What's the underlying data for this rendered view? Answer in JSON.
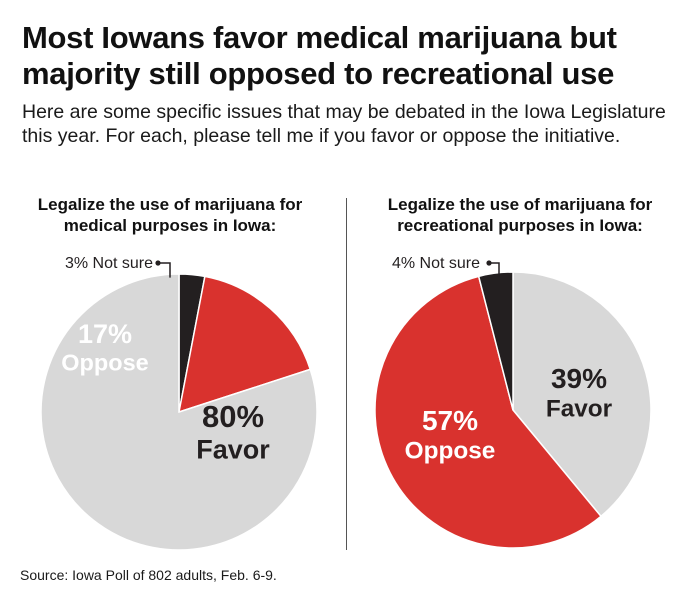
{
  "header": {
    "title": "Most Iowans favor medical marijuana but majority still opposed to recreational use",
    "subtitle": "Here are some specific issues that may be debated in the Iowa Legislature this year. For each, please tell me if you favor or oppose the initiative."
  },
  "footer": {
    "source": "Source: Iowa Poll of 802 adults, Feb. 6-9."
  },
  "colors": {
    "favor": "#d8d8d8",
    "oppose": "#d9322e",
    "not_sure": "#231f20",
    "favor_text": "#231f20",
    "oppose_text": "#ffffff"
  },
  "chart_data": [
    {
      "type": "pie",
      "title": "Legalize the use of marijuana for medical purposes in Iowa:",
      "slices": [
        {
          "category": "Not sure",
          "value": 3,
          "pct_label": "3%",
          "name_label": "Not sure",
          "label_style": "callout"
        },
        {
          "category": "Oppose",
          "value": 17,
          "pct_label": "17%",
          "name_label": "Oppose",
          "label_style": "inside"
        },
        {
          "category": "Favor",
          "value": 80,
          "pct_label": "80%",
          "name_label": "Favor",
          "label_style": "inside"
        }
      ]
    },
    {
      "type": "pie",
      "title": "Legalize the use of marijuana for recreational purposes in Iowa:",
      "slices": [
        {
          "category": "Favor",
          "value": 39,
          "pct_label": "39%",
          "name_label": "Favor",
          "label_style": "inside"
        },
        {
          "category": "Oppose",
          "value": 57,
          "pct_label": "57%",
          "name_label": "Oppose",
          "label_style": "inside"
        },
        {
          "category": "Not sure",
          "value": 4,
          "pct_label": "4%",
          "name_label": "Not sure",
          "label_style": "callout"
        }
      ]
    }
  ]
}
